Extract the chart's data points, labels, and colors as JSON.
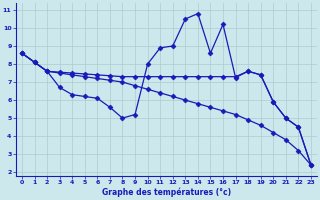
{
  "title": "Graphe des températures (°c)",
  "bg_color": "#cce8ec",
  "grid_color": "#aacccc",
  "line_color": "#1a1ab8",
  "xlim": [
    -0.5,
    23.5
  ],
  "ylim": [
    1.8,
    11.4
  ],
  "xticks": [
    0,
    1,
    2,
    3,
    4,
    5,
    6,
    7,
    8,
    9,
    10,
    11,
    12,
    13,
    14,
    15,
    16,
    17,
    18,
    19,
    20,
    21,
    22,
    23
  ],
  "yticks": [
    2,
    3,
    4,
    5,
    6,
    7,
    8,
    9,
    10,
    11
  ],
  "line_zigzag_x": [
    0,
    1,
    2,
    3,
    4,
    5,
    6,
    7,
    8,
    9,
    10,
    11,
    12,
    13,
    14,
    15,
    16,
    17,
    18,
    19,
    20,
    21,
    22,
    23
  ],
  "line_zigzag_y": [
    8.6,
    8.1,
    7.6,
    6.7,
    6.3,
    6.2,
    6.1,
    5.6,
    5.0,
    5.2,
    8.0,
    8.9,
    9.0,
    10.5,
    10.8,
    8.6,
    10.2,
    7.25,
    7.6,
    7.4,
    5.9,
    5.0,
    4.5,
    2.4
  ],
  "line_flat_x": [
    0,
    1,
    2,
    3,
    4,
    5,
    6,
    7,
    8,
    9,
    10,
    11,
    12,
    13,
    14,
    15,
    16,
    17,
    18,
    19,
    20,
    21,
    22,
    23
  ],
  "line_flat_y": [
    8.6,
    8.1,
    7.6,
    7.55,
    7.5,
    7.45,
    7.4,
    7.35,
    7.3,
    7.3,
    7.3,
    7.3,
    7.3,
    7.3,
    7.3,
    7.3,
    7.3,
    7.3,
    7.6,
    7.4,
    5.9,
    5.0,
    4.5,
    2.4
  ],
  "line_diag_x": [
    0,
    1,
    2,
    3,
    4,
    5,
    6,
    7,
    8,
    9,
    10,
    11,
    12,
    13,
    14,
    15,
    16,
    17,
    18,
    19,
    20,
    21,
    22,
    23
  ],
  "line_diag_y": [
    8.6,
    8.1,
    7.6,
    7.5,
    7.4,
    7.3,
    7.2,
    7.1,
    7.0,
    6.8,
    6.6,
    6.4,
    6.2,
    6.0,
    5.8,
    5.6,
    5.4,
    5.2,
    4.9,
    4.6,
    4.2,
    3.8,
    3.2,
    2.4
  ]
}
